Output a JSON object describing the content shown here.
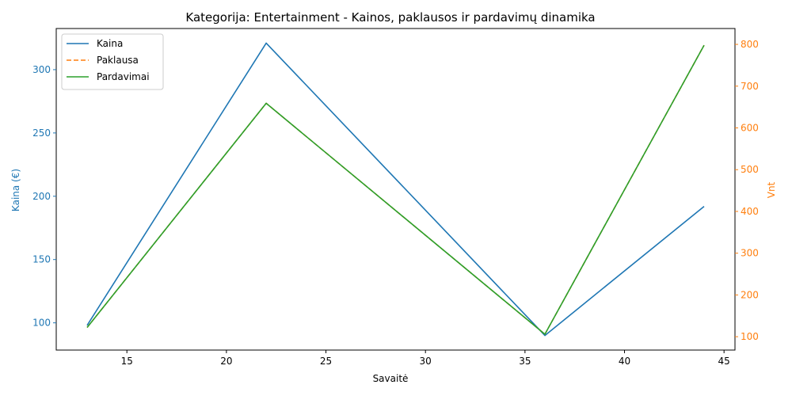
{
  "chart_data": {
    "type": "line",
    "title": "Kategorija: Entertainment - Kainos, paklausos ir pardavimų dinamika",
    "xlabel": "Savaitė",
    "ylabel_left": "Kaina (€)",
    "ylabel_right": "Vnt",
    "xlim": [
      11.45,
      45.55
    ],
    "ylim_left": [
      78.5,
      332.5
    ],
    "ylim_right": [
      68,
      838
    ],
    "x_ticks": [
      15,
      20,
      25,
      30,
      35,
      40,
      45
    ],
    "y_ticks_left": [
      100,
      150,
      200,
      250,
      300
    ],
    "y_ticks_right": [
      100,
      200,
      300,
      400,
      500,
      600,
      700,
      800
    ],
    "grid": false,
    "legend_position": "top-left",
    "colors": {
      "left_axis": "#1f77b4",
      "right_axis": "#ff7f0e"
    },
    "series": [
      {
        "name": "Kaina",
        "axis": "left",
        "color": "#1f77b4",
        "style": "solid",
        "x": [
          13,
          22,
          36,
          44
        ],
        "y": [
          98,
          321,
          90,
          192
        ]
      },
      {
        "name": "Paklausa",
        "axis": "right",
        "color": "#ff7f0e",
        "style": "dashed",
        "x": [
          13,
          22,
          36,
          44
        ],
        "y": [
          122,
          659,
          106,
          798
        ]
      },
      {
        "name": "Pardavimai",
        "axis": "right",
        "color": "#2ca02c",
        "style": "solid",
        "x": [
          13,
          22,
          36,
          44
        ],
        "y": [
          122,
          659,
          106,
          798
        ]
      }
    ]
  }
}
